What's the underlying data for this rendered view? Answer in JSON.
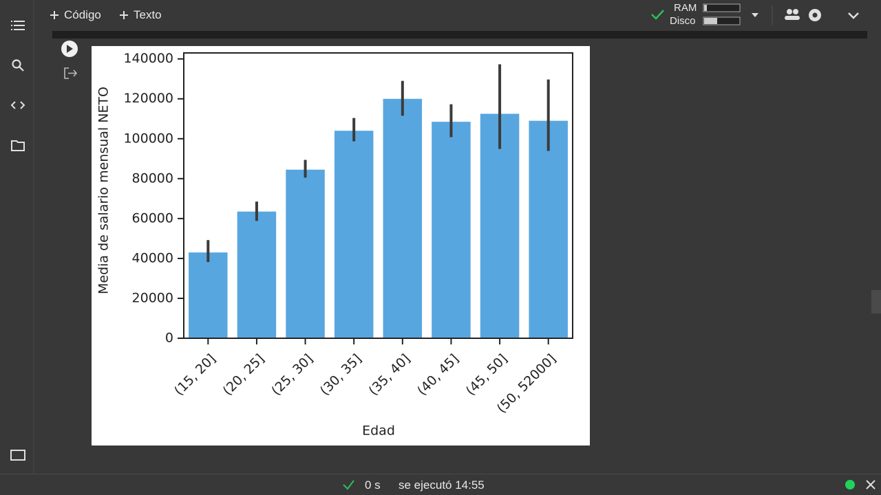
{
  "toolbar": {
    "add_code": "Código",
    "add_text": "Texto"
  },
  "resources": {
    "ram": "RAM",
    "disk": "Disco"
  },
  "status": {
    "duration": "0 s",
    "executed": "se ejecutó 14:55"
  },
  "chart_data": {
    "type": "bar",
    "x_label": "Edad",
    "y_label": "Media de salario mensual NETO",
    "categories": [
      "(15, 20]",
      "(20, 25]",
      "(25, 30]",
      "(30, 35]",
      "(35, 40]",
      "(40, 45]",
      "(45, 50]",
      "(50, 52000]"
    ],
    "values": [
      43000,
      63500,
      84500,
      104000,
      120000,
      108500,
      112500,
      109000
    ],
    "ci_low": [
      38200,
      58800,
      80500,
      98700,
      111500,
      100800,
      94900,
      93900
    ],
    "ci_high": [
      49200,
      68500,
      89400,
      110400,
      129000,
      117300,
      137300,
      129700
    ],
    "color": "#58a6e0",
    "error_color": "#3b3b3b",
    "ylim": [
      0,
      143000
    ],
    "yticks": [
      0,
      20000,
      40000,
      60000,
      80000,
      100000,
      120000,
      140000
    ]
  }
}
